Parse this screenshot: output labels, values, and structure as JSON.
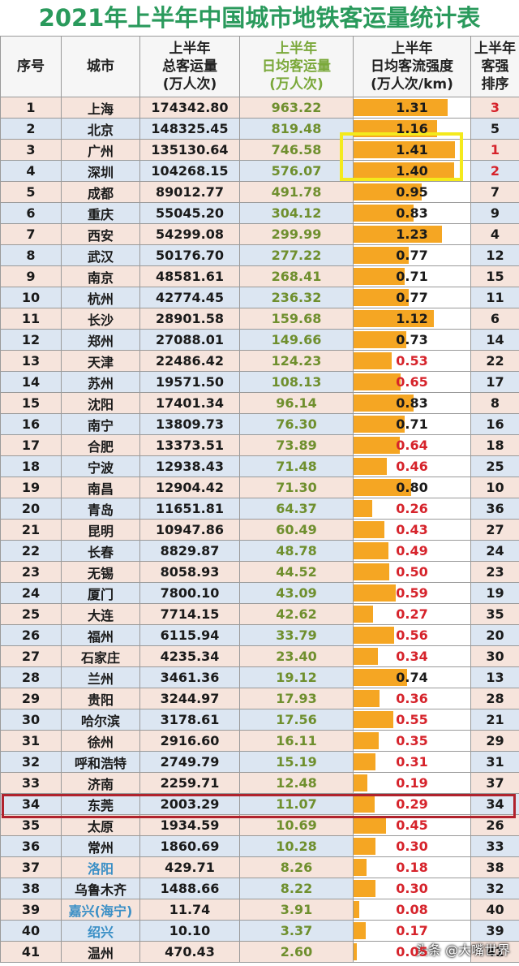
{
  "title": "2021年上半年中国城市地铁客运量统计表",
  "headers": {
    "index": "序号",
    "city": "城市",
    "total": [
      "上半年",
      "总客运量",
      "(万人次)"
    ],
    "daily": [
      "上半年",
      "日均客运量",
      "(万人次)"
    ],
    "intensity": [
      "上半年",
      "日均客流强度",
      "(万人次/km)"
    ],
    "rank": [
      "上半年",
      "客强",
      "排序"
    ]
  },
  "colors": {
    "bar": "#f5a623",
    "red": "#d6232b",
    "green_title": "#2a9a5c",
    "highlight_yellow": "#f4ea1c",
    "highlight_red": "#b0222c"
  },
  "rows": [
    {
      "no": "1",
      "city": "上海",
      "total": "174342.80",
      "daily": "963.22",
      "intensity": 1.31,
      "intensity_text": "1.31",
      "rank": "3"
    },
    {
      "no": "2",
      "city": "北京",
      "total": "148325.45",
      "daily": "819.48",
      "intensity": 1.16,
      "intensity_text": "1.16",
      "rank": "5"
    },
    {
      "no": "3",
      "city": "广州",
      "total": "135130.64",
      "daily": "746.58",
      "intensity": 1.41,
      "intensity_text": "1.41",
      "rank": "1"
    },
    {
      "no": "4",
      "city": "深圳",
      "total": "104268.15",
      "daily": "576.07",
      "intensity": 1.4,
      "intensity_text": "1.40",
      "rank": "2"
    },
    {
      "no": "5",
      "city": "成都",
      "total": "89012.77",
      "daily": "491.78",
      "intensity": 0.95,
      "intensity_text": "0.95",
      "rank": "7"
    },
    {
      "no": "6",
      "city": "重庆",
      "total": "55045.20",
      "daily": "304.12",
      "intensity": 0.83,
      "intensity_text": "0.83",
      "rank": "9"
    },
    {
      "no": "7",
      "city": "西安",
      "total": "54299.08",
      "daily": "299.99",
      "intensity": 1.23,
      "intensity_text": "1.23",
      "rank": "4"
    },
    {
      "no": "8",
      "city": "武汉",
      "total": "50176.70",
      "daily": "277.22",
      "intensity": 0.77,
      "intensity_text": "0.77",
      "rank": "12"
    },
    {
      "no": "9",
      "city": "南京",
      "total": "48581.61",
      "daily": "268.41",
      "intensity": 0.71,
      "intensity_text": "0.71",
      "rank": "15"
    },
    {
      "no": "10",
      "city": "杭州",
      "total": "42774.45",
      "daily": "236.32",
      "intensity": 0.77,
      "intensity_text": "0.77",
      "rank": "11"
    },
    {
      "no": "11",
      "city": "长沙",
      "total": "28901.58",
      "daily": "159.68",
      "intensity": 1.12,
      "intensity_text": "1.12",
      "rank": "6"
    },
    {
      "no": "12",
      "city": "郑州",
      "total": "27088.01",
      "daily": "149.66",
      "intensity": 0.73,
      "intensity_text": "0.73",
      "rank": "14"
    },
    {
      "no": "13",
      "city": "天津",
      "total": "22486.42",
      "daily": "124.23",
      "intensity": 0.53,
      "intensity_text": "0.53",
      "rank": "22"
    },
    {
      "no": "14",
      "city": "苏州",
      "total": "19571.50",
      "daily": "108.13",
      "intensity": 0.65,
      "intensity_text": "0.65",
      "rank": "17"
    },
    {
      "no": "15",
      "city": "沈阳",
      "total": "17401.34",
      "daily": "96.14",
      "intensity": 0.83,
      "intensity_text": "0.83",
      "rank": "8"
    },
    {
      "no": "16",
      "city": "南宁",
      "total": "13809.73",
      "daily": "76.30",
      "intensity": 0.71,
      "intensity_text": "0.71",
      "rank": "16"
    },
    {
      "no": "17",
      "city": "合肥",
      "total": "13373.51",
      "daily": "73.89",
      "intensity": 0.64,
      "intensity_text": "0.64",
      "rank": "18"
    },
    {
      "no": "18",
      "city": "宁波",
      "total": "12938.43",
      "daily": "71.48",
      "intensity": 0.46,
      "intensity_text": "0.46",
      "rank": "25"
    },
    {
      "no": "19",
      "city": "南昌",
      "total": "12904.42",
      "daily": "71.30",
      "intensity": 0.8,
      "intensity_text": "0.80",
      "rank": "10"
    },
    {
      "no": "20",
      "city": "青岛",
      "total": "11651.81",
      "daily": "64.37",
      "intensity": 0.26,
      "intensity_text": "0.26",
      "rank": "36"
    },
    {
      "no": "21",
      "city": "昆明",
      "total": "10947.86",
      "daily": "60.49",
      "intensity": 0.43,
      "intensity_text": "0.43",
      "rank": "27"
    },
    {
      "no": "22",
      "city": "长春",
      "total": "8829.87",
      "daily": "48.78",
      "intensity": 0.49,
      "intensity_text": "0.49",
      "rank": "24"
    },
    {
      "no": "23",
      "city": "无锡",
      "total": "8058.93",
      "daily": "44.52",
      "intensity": 0.5,
      "intensity_text": "0.50",
      "rank": "23"
    },
    {
      "no": "24",
      "city": "厦门",
      "total": "7800.10",
      "daily": "43.09",
      "intensity": 0.59,
      "intensity_text": "0.59",
      "rank": "19"
    },
    {
      "no": "25",
      "city": "大连",
      "total": "7714.15",
      "daily": "42.62",
      "intensity": 0.27,
      "intensity_text": "0.27",
      "rank": "35"
    },
    {
      "no": "26",
      "city": "福州",
      "total": "6115.94",
      "daily": "33.79",
      "intensity": 0.56,
      "intensity_text": "0.56",
      "rank": "20"
    },
    {
      "no": "27",
      "city": "石家庄",
      "total": "4235.34",
      "daily": "23.40",
      "intensity": 0.34,
      "intensity_text": "0.34",
      "rank": "30"
    },
    {
      "no": "28",
      "city": "兰州",
      "total": "3461.36",
      "daily": "19.12",
      "intensity": 0.74,
      "intensity_text": "0.74",
      "rank": "13"
    },
    {
      "no": "29",
      "city": "贵阳",
      "total": "3244.97",
      "daily": "17.93",
      "intensity": 0.36,
      "intensity_text": "0.36",
      "rank": "28"
    },
    {
      "no": "30",
      "city": "哈尔滨",
      "total": "3178.61",
      "daily": "17.56",
      "intensity": 0.55,
      "intensity_text": "0.55",
      "rank": "21"
    },
    {
      "no": "31",
      "city": "徐州",
      "total": "2916.60",
      "daily": "16.11",
      "intensity": 0.35,
      "intensity_text": "0.35",
      "rank": "29"
    },
    {
      "no": "32",
      "city": "呼和浩特",
      "total": "2749.79",
      "daily": "15.19",
      "intensity": 0.31,
      "intensity_text": "0.31",
      "rank": "31"
    },
    {
      "no": "33",
      "city": "济南",
      "total": "2259.71",
      "daily": "12.48",
      "intensity": 0.19,
      "intensity_text": "0.19",
      "rank": "37"
    },
    {
      "no": "34",
      "city": "东莞",
      "total": "2003.29",
      "daily": "11.07",
      "intensity": 0.29,
      "intensity_text": "0.29",
      "rank": "34"
    },
    {
      "no": "35",
      "city": "太原",
      "total": "1934.59",
      "daily": "10.69",
      "intensity": 0.45,
      "intensity_text": "0.45",
      "rank": "26"
    },
    {
      "no": "36",
      "city": "常州",
      "total": "1860.69",
      "daily": "10.28",
      "intensity": 0.3,
      "intensity_text": "0.30",
      "rank": "33"
    },
    {
      "no": "37",
      "city": "洛阳",
      "total": "429.71",
      "daily": "8.26",
      "intensity": 0.18,
      "intensity_text": "0.18",
      "rank": "38"
    },
    {
      "no": "38",
      "city": "乌鲁木齐",
      "total": "1488.66",
      "daily": "8.22",
      "intensity": 0.3,
      "intensity_text": "0.30",
      "rank": "32"
    },
    {
      "no": "39",
      "city": "嘉兴(海宁)",
      "total": "11.74",
      "daily": "3.91",
      "intensity": 0.08,
      "intensity_text": "0.08",
      "rank": "40"
    },
    {
      "no": "40",
      "city": "绍兴",
      "total": "10.10",
      "daily": "3.37",
      "intensity": 0.17,
      "intensity_text": "0.17",
      "rank": "39"
    },
    {
      "no": "41",
      "city": "温州",
      "total": "470.43",
      "daily": "2.60",
      "intensity": 0.05,
      "intensity_text": "0.05",
      "rank": "41"
    }
  ],
  "red_rank_rows": [
    "1",
    "3",
    "4"
  ],
  "blue_city_rows": [
    "37",
    "39",
    "40"
  ],
  "intensity_red_below": 0.7,
  "watermark": "头条 @大嘴世界"
}
